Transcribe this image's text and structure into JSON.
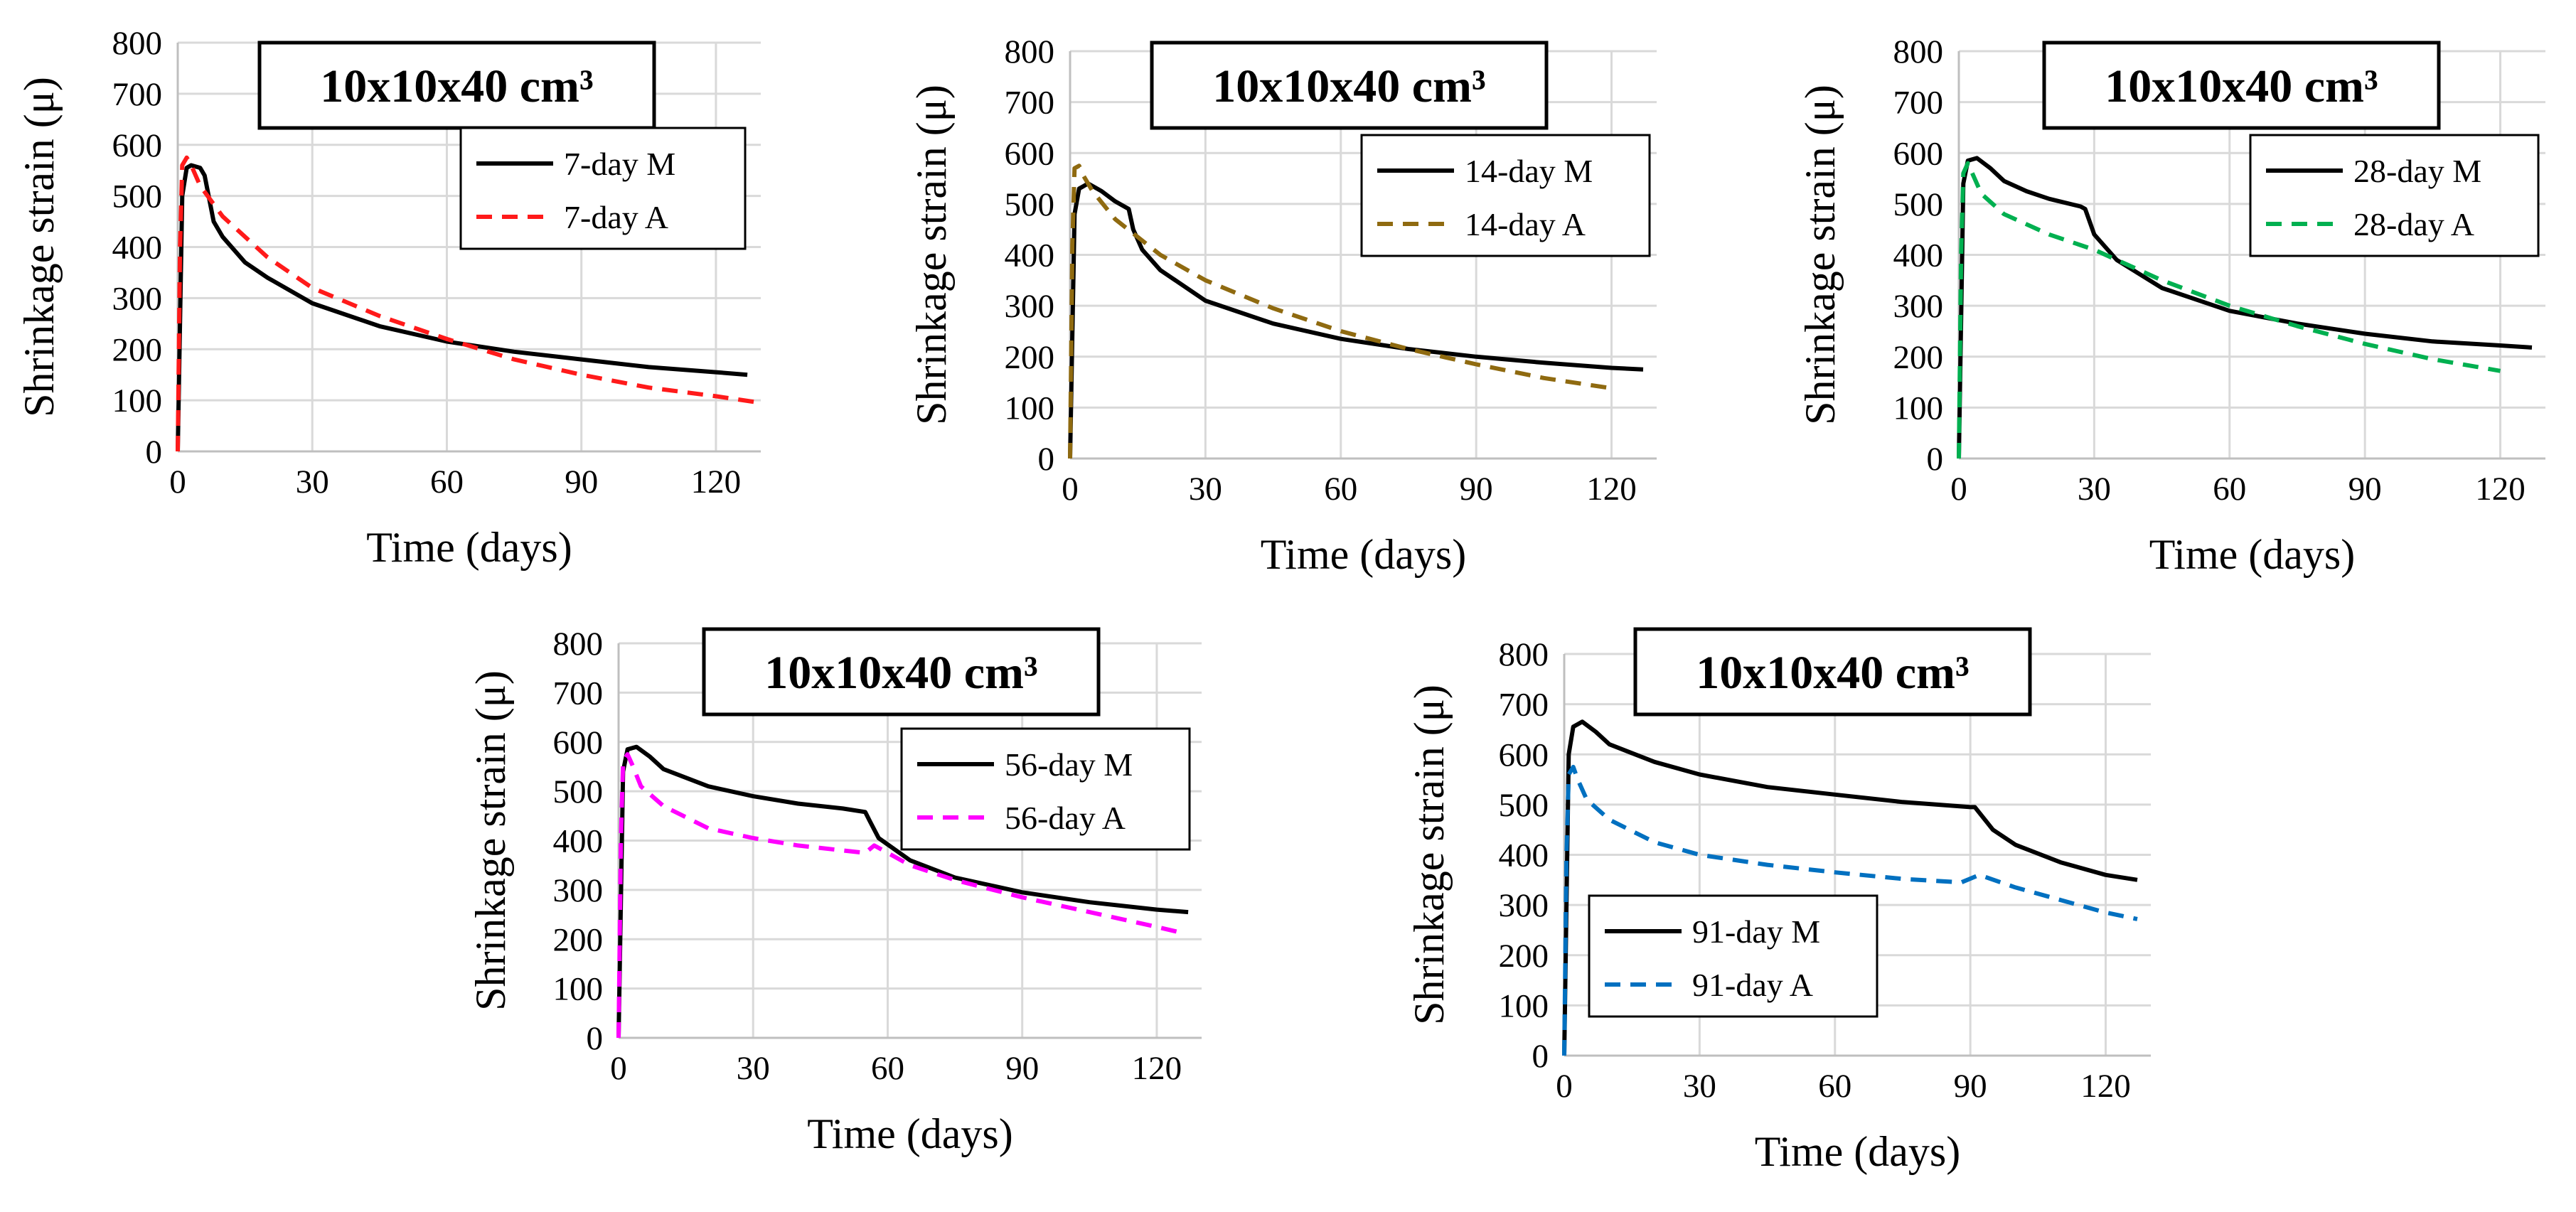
{
  "colors": {
    "measured": "#000000",
    "a7": "#ff1a1a",
    "a14": "#8f6a10",
    "a28": "#00b050",
    "a56": "#ff00ff",
    "a91": "#0070c0"
  },
  "chart_data": [
    {
      "type": "line",
      "title": "10x10x40 cm³",
      "xlabel": "Time (days)",
      "ylabel": "Shrinkage strain (μ)",
      "xlim": [
        0,
        130
      ],
      "ylim": [
        0,
        800
      ],
      "xticks": [
        "0",
        "30",
        "60",
        "90",
        "120"
      ],
      "yticks": [
        "0",
        "100",
        "200",
        "300",
        "400",
        "500",
        "600",
        "700",
        "800"
      ],
      "series": [
        {
          "name": "7-day M",
          "color_key": "measured",
          "dash": false,
          "x": [
            0,
            1,
            2,
            3,
            5,
            6,
            8,
            10,
            15,
            20,
            30,
            45,
            60,
            75,
            90,
            105,
            120,
            127
          ],
          "y": [
            0,
            500,
            555,
            560,
            555,
            540,
            450,
            420,
            370,
            340,
            290,
            245,
            215,
            195,
            180,
            165,
            155,
            150
          ]
        },
        {
          "name": "7-day A",
          "color_key": "a7",
          "dash": true,
          "x": [
            0,
            0.5,
            1,
            2,
            3,
            5,
            10,
            20,
            30,
            45,
            60,
            75,
            90,
            105,
            120,
            130
          ],
          "y": [
            0,
            400,
            560,
            575,
            560,
            520,
            460,
            380,
            320,
            265,
            220,
            180,
            150,
            125,
            108,
            95
          ]
        }
      ]
    },
    {
      "type": "line",
      "title": "10x10x40 cm³",
      "xlabel": "Time (days)",
      "ylabel": "Shrinkage strain (μ)",
      "xlim": [
        0,
        130
      ],
      "ylim": [
        0,
        800
      ],
      "xticks": [
        "0",
        "30",
        "60",
        "90",
        "120"
      ],
      "yticks": [
        "0",
        "100",
        "200",
        "300",
        "400",
        "500",
        "600",
        "700",
        "800"
      ],
      "series": [
        {
          "name": "14-day M",
          "color_key": "measured",
          "dash": false,
          "x": [
            0,
            1,
            2,
            4,
            7,
            10,
            13,
            14,
            16,
            20,
            30,
            45,
            60,
            75,
            90,
            105,
            120,
            127
          ],
          "y": [
            0,
            480,
            530,
            540,
            525,
            505,
            490,
            450,
            410,
            370,
            310,
            265,
            235,
            215,
            200,
            188,
            178,
            175
          ]
        },
        {
          "name": "14-day A",
          "color_key": "a14",
          "dash": true,
          "x": [
            0,
            0.5,
            1,
            2,
            3,
            5,
            10,
            20,
            30,
            45,
            60,
            75,
            90,
            105,
            120
          ],
          "y": [
            0,
            420,
            570,
            575,
            555,
            525,
            470,
            400,
            350,
            295,
            250,
            215,
            185,
            158,
            138
          ]
        }
      ]
    },
    {
      "type": "line",
      "title": "10x10x40 cm³",
      "xlabel": "Time (days)",
      "ylabel": "Shrinkage strain (μ)",
      "xlim": [
        0,
        130
      ],
      "ylim": [
        0,
        800
      ],
      "xticks": [
        "0",
        "30",
        "60",
        "90",
        "120"
      ],
      "yticks": [
        "0",
        "100",
        "200",
        "300",
        "400",
        "500",
        "600",
        "700",
        "800"
      ],
      "series": [
        {
          "name": "28-day M",
          "color_key": "measured",
          "dash": false,
          "x": [
            0,
            1,
            2,
            4,
            7,
            10,
            15,
            20,
            27,
            28,
            30,
            35,
            45,
            60,
            75,
            90,
            105,
            120,
            127
          ],
          "y": [
            0,
            540,
            585,
            590,
            570,
            545,
            525,
            510,
            495,
            490,
            440,
            390,
            335,
            290,
            265,
            245,
            230,
            222,
            218
          ]
        },
        {
          "name": "28-day A",
          "color_key": "a28",
          "dash": true,
          "x": [
            0,
            0.5,
            1,
            2,
            3,
            5,
            10,
            20,
            30,
            45,
            60,
            75,
            90,
            105,
            120
          ],
          "y": [
            0,
            400,
            560,
            580,
            560,
            520,
            480,
            440,
            410,
            350,
            300,
            260,
            225,
            195,
            172
          ]
        }
      ]
    },
    {
      "type": "line",
      "title": "10x10x40 cm³",
      "xlabel": "Time (days)",
      "ylabel": "Shrinkage strain (μ)",
      "xlim": [
        0,
        130
      ],
      "ylim": [
        0,
        800
      ],
      "xticks": [
        "0",
        "30",
        "60",
        "90",
        "120"
      ],
      "yticks": [
        "0",
        "100",
        "200",
        "300",
        "400",
        "500",
        "600",
        "700",
        "800"
      ],
      "series": [
        {
          "name": "56-day M",
          "color_key": "measured",
          "dash": false,
          "x": [
            0,
            1,
            2,
            4,
            7,
            10,
            20,
            30,
            40,
            50,
            55,
            56,
            58,
            65,
            75,
            90,
            105,
            120,
            127
          ],
          "y": [
            0,
            540,
            585,
            590,
            570,
            545,
            510,
            490,
            475,
            465,
            458,
            440,
            405,
            360,
            325,
            295,
            275,
            260,
            255
          ]
        },
        {
          "name": "56-day A",
          "color_key": "a56",
          "dash": true,
          "x": [
            0,
            0.5,
            1,
            2,
            3,
            5,
            10,
            20,
            30,
            40,
            50,
            55,
            57,
            65,
            75,
            90,
            105,
            120,
            126
          ],
          "y": [
            0,
            400,
            560,
            575,
            555,
            510,
            470,
            425,
            405,
            390,
            380,
            375,
            390,
            350,
            320,
            285,
            255,
            225,
            212
          ]
        }
      ]
    },
    {
      "type": "line",
      "title": "10x10x40 cm³",
      "xlabel": "Time (days)",
      "ylabel": "Shrinkage strain (μ)",
      "xlim": [
        0,
        130
      ],
      "ylim": [
        0,
        800
      ],
      "xticks": [
        "0",
        "30",
        "60",
        "90",
        "120"
      ],
      "yticks": [
        "0",
        "100",
        "200",
        "300",
        "400",
        "500",
        "600",
        "700",
        "800"
      ],
      "series": [
        {
          "name": "91-day M",
          "color_key": "measured",
          "dash": false,
          "x": [
            0,
            1,
            2,
            4,
            7,
            10,
            20,
            30,
            45,
            60,
            75,
            90,
            91,
            95,
            100,
            110,
            120,
            127
          ],
          "y": [
            0,
            600,
            655,
            665,
            645,
            620,
            585,
            560,
            535,
            520,
            505,
            495,
            495,
            450,
            420,
            385,
            360,
            350
          ]
        },
        {
          "name": "91-day A",
          "color_key": "a91",
          "dash": true,
          "x": [
            0,
            0.5,
            1,
            2,
            3,
            5,
            10,
            20,
            30,
            45,
            60,
            75,
            88,
            92,
            100,
            110,
            120,
            127
          ],
          "y": [
            0,
            400,
            560,
            575,
            550,
            510,
            470,
            425,
            400,
            380,
            365,
            352,
            345,
            360,
            335,
            310,
            285,
            272
          ]
        }
      ]
    }
  ]
}
